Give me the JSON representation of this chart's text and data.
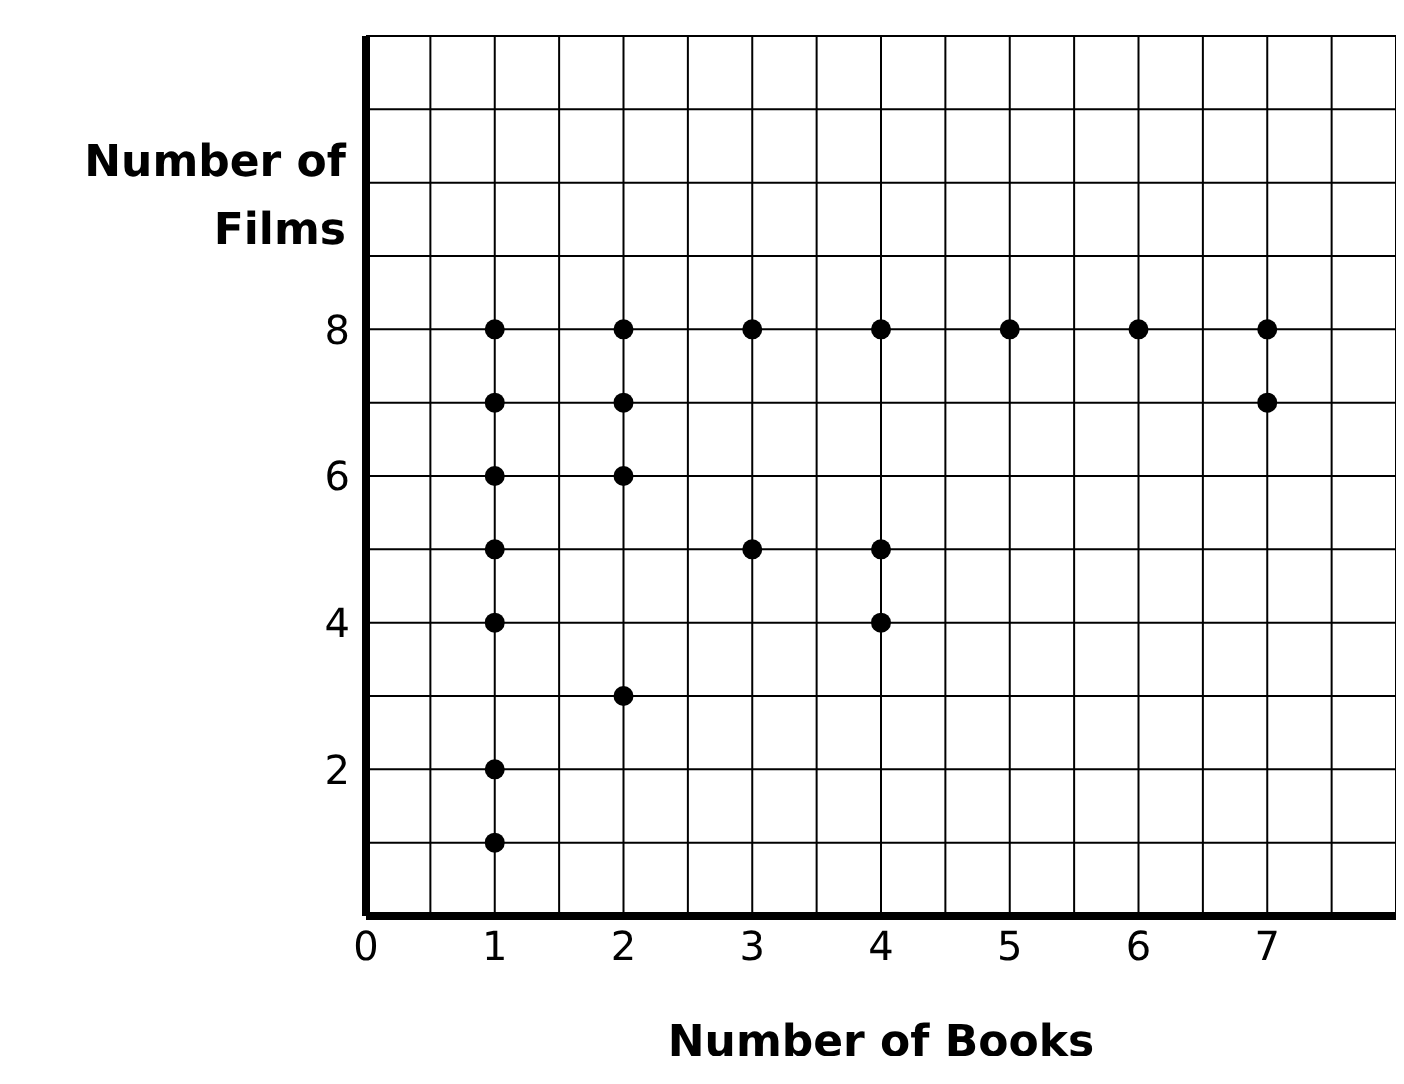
{
  "chart_data": {
    "type": "scatter",
    "xlabel": "Number of Books",
    "ylabel": "Number of Films",
    "x": [
      1,
      1,
      1,
      1,
      1,
      1,
      1,
      2,
      2,
      2,
      2,
      3,
      3,
      4,
      4,
      4,
      5,
      6,
      7,
      7
    ],
    "values": [
      8,
      7,
      6,
      5,
      4,
      2,
      1,
      8,
      7,
      6,
      3,
      8,
      5,
      8,
      5,
      4,
      8,
      8,
      8,
      7
    ],
    "color": "#000000",
    "marker": "circle",
    "grid": true,
    "xlim": [
      0,
      8
    ],
    "xticks": [
      0,
      {
        "value": 0.5,
        "label": null
      },
      1,
      {
        "value": 1.5,
        "label": null
      },
      2,
      {
        "value": 2.5,
        "label": null
      },
      3,
      {
        "value": 3.5,
        "label": null
      },
      4,
      {
        "value": 4.5,
        "label": null
      },
      5,
      {
        "value": 5.5,
        "label": null
      },
      6,
      {
        "value": 6.5,
        "label": null
      },
      7,
      {
        "value": 7.5,
        "label": null
      }
    ],
    "ylim": [
      0,
      12
    ],
    "yticks": [
      {
        "value": 1,
        "label": null
      },
      2,
      {
        "value": 3,
        "label": null
      },
      4,
      {
        "value": 5,
        "label": null
      },
      6,
      {
        "value": 7,
        "label": null
      },
      8,
      {
        "value": 9,
        "label": null
      },
      {
        "value": 10,
        "label": null
      },
      {
        "value": 11,
        "label": null
      }
    ]
  }
}
